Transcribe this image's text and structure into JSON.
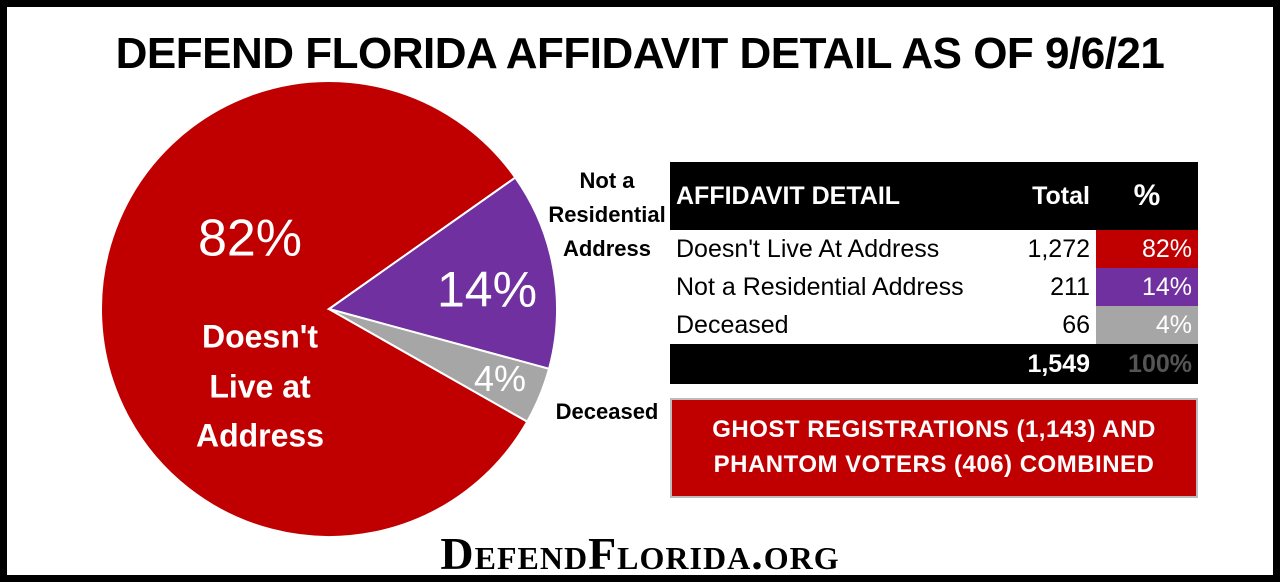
{
  "chart_data": {
    "type": "pie",
    "title": "DEFEND FLORIDA AFFIDAVIT DETAIL AS OF 9/6/21",
    "categories": [
      "Doesn't Live at Address",
      "Not a Residential Address",
      "Deceased"
    ],
    "values": [
      82,
      14,
      4
    ],
    "value_labels": [
      "82%",
      "14%",
      "4%"
    ],
    "colors": [
      "#c00000",
      "#7030a0",
      "#a6a6a6"
    ]
  },
  "table": {
    "header": [
      "AFFIDAVIT DETAIL",
      "Total",
      "%"
    ],
    "rows": [
      [
        "Doesn't Live At Address",
        "1,272",
        "82%"
      ],
      [
        "Not a Residential Address",
        "211",
        "14%"
      ],
      [
        "Deceased",
        "66",
        "4%"
      ]
    ],
    "total": [
      "1,549",
      "100%"
    ]
  },
  "banner": {
    "lines": [
      "GHOST REGISTRATIONS (1,143) AND",
      "PHANTOM VOTERS (406) COMBINED"
    ]
  },
  "footer": "DefendFlorida.org"
}
